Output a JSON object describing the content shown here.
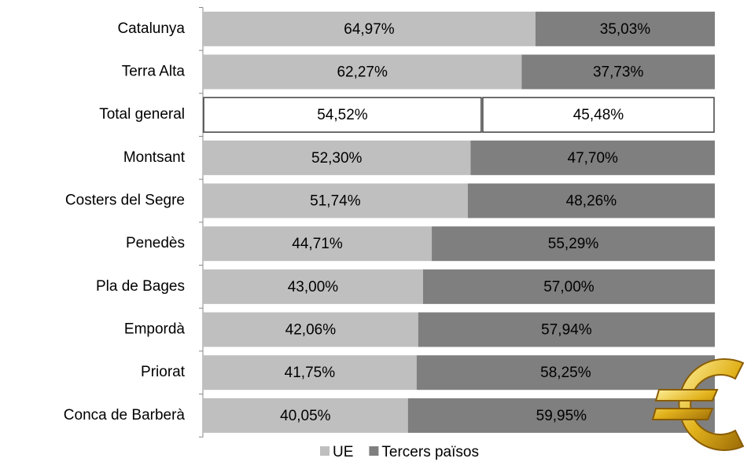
{
  "chart_data": {
    "type": "stacked-bar-horizontal",
    "categories": [
      "Catalunya",
      "Terra Alta",
      "Total general",
      "Montsant",
      "Costers del Segre",
      "Penedès",
      "Pla de Bages",
      "Empordà",
      "Priorat",
      "Conca de Barberà"
    ],
    "series": [
      {
        "name": "UE",
        "color": "#bfbfbf",
        "values": [
          64.97,
          62.27,
          54.52,
          52.3,
          51.74,
          44.71,
          43.0,
          42.06,
          41.75,
          40.05
        ],
        "value_labels": [
          "64,97%",
          "62,27%",
          "54,52%",
          "52,30%",
          "51,74%",
          "44,71%",
          "43,00%",
          "42,06%",
          "41,75%",
          "40,05%"
        ]
      },
      {
        "name": "Tercers països",
        "color": "#7f7f7f",
        "values": [
          35.03,
          37.73,
          45.48,
          47.7,
          48.26,
          55.29,
          57.0,
          57.94,
          58.25,
          59.95
        ],
        "value_labels": [
          "35,03%",
          "37,73%",
          "45,48%",
          "47,70%",
          "48,26%",
          "55,29%",
          "57,00%",
          "57,94%",
          "58,25%",
          "59,95%"
        ]
      }
    ],
    "highlight": {
      "index": 2,
      "fill": "#ffffff",
      "stroke": "#404040"
    },
    "xlim": [
      0,
      100
    ],
    "legend": "bottom"
  }
}
